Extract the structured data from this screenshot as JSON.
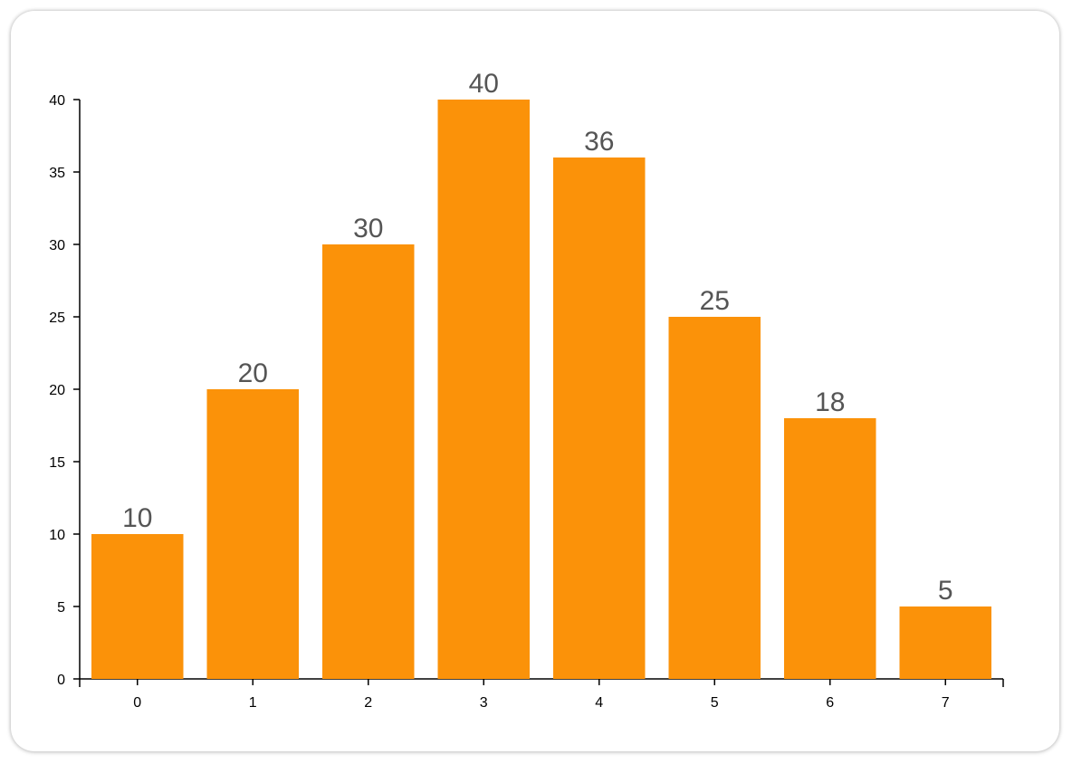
{
  "chart_data": {
    "type": "bar",
    "categories": [
      "0",
      "1",
      "2",
      "3",
      "4",
      "5",
      "6",
      "7"
    ],
    "values": [
      10,
      20,
      30,
      40,
      36,
      25,
      18,
      5
    ],
    "title": "",
    "xlabel": "",
    "ylabel": "",
    "ylim": [
      0,
      40
    ],
    "yticks": [
      0,
      5,
      10,
      15,
      20,
      25,
      30,
      35,
      40
    ],
    "grid": false,
    "data_labels": true,
    "colors": {
      "bar": "#FB9209",
      "data_label": "#555555",
      "axis": "#000000"
    }
  }
}
